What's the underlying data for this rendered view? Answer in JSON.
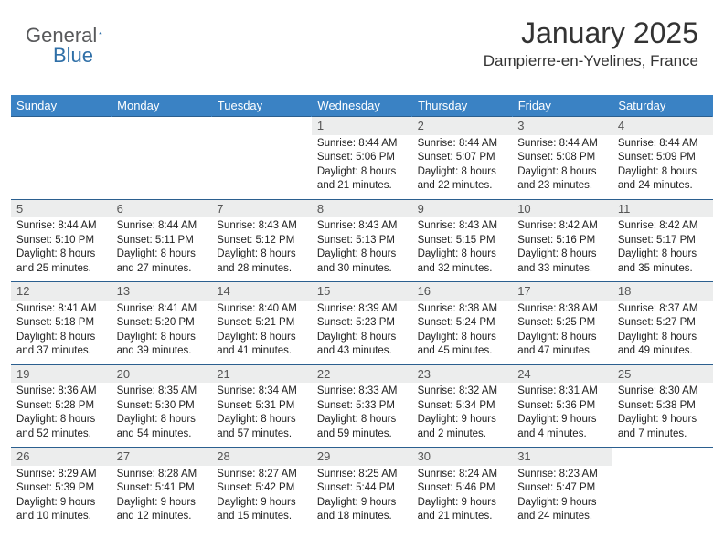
{
  "brand": {
    "general": "General",
    "blue": "Blue"
  },
  "header": {
    "month_title": "January 2025",
    "location": "Dampierre-en-Yvelines, France"
  },
  "colors": {
    "header_bg": "#3a82c4",
    "header_text": "#ffffff",
    "daynum_bg": "#eceded",
    "row_divider": "#2b5f8f",
    "body_text": "#222222",
    "logo_gray": "#58595b",
    "logo_blue": "#2f6fa7",
    "background": "#ffffff"
  },
  "typography": {
    "month_title_fontsize": 32,
    "location_fontsize": 17,
    "weekday_fontsize": 13,
    "daynum_fontsize": 13,
    "cell_fontsize": 11.5
  },
  "calendar": {
    "type": "table",
    "weekdays": [
      "Sunday",
      "Monday",
      "Tuesday",
      "Wednesday",
      "Thursday",
      "Friday",
      "Saturday"
    ],
    "weeks": [
      [
        null,
        null,
        null,
        {
          "day": "1",
          "sunrise": "Sunrise: 8:44 AM",
          "sunset": "Sunset: 5:06 PM",
          "dl1": "Daylight: 8 hours",
          "dl2": "and 21 minutes."
        },
        {
          "day": "2",
          "sunrise": "Sunrise: 8:44 AM",
          "sunset": "Sunset: 5:07 PM",
          "dl1": "Daylight: 8 hours",
          "dl2": "and 22 minutes."
        },
        {
          "day": "3",
          "sunrise": "Sunrise: 8:44 AM",
          "sunset": "Sunset: 5:08 PM",
          "dl1": "Daylight: 8 hours",
          "dl2": "and 23 minutes."
        },
        {
          "day": "4",
          "sunrise": "Sunrise: 8:44 AM",
          "sunset": "Sunset: 5:09 PM",
          "dl1": "Daylight: 8 hours",
          "dl2": "and 24 minutes."
        }
      ],
      [
        {
          "day": "5",
          "sunrise": "Sunrise: 8:44 AM",
          "sunset": "Sunset: 5:10 PM",
          "dl1": "Daylight: 8 hours",
          "dl2": "and 25 minutes."
        },
        {
          "day": "6",
          "sunrise": "Sunrise: 8:44 AM",
          "sunset": "Sunset: 5:11 PM",
          "dl1": "Daylight: 8 hours",
          "dl2": "and 27 minutes."
        },
        {
          "day": "7",
          "sunrise": "Sunrise: 8:43 AM",
          "sunset": "Sunset: 5:12 PM",
          "dl1": "Daylight: 8 hours",
          "dl2": "and 28 minutes."
        },
        {
          "day": "8",
          "sunrise": "Sunrise: 8:43 AM",
          "sunset": "Sunset: 5:13 PM",
          "dl1": "Daylight: 8 hours",
          "dl2": "and 30 minutes."
        },
        {
          "day": "9",
          "sunrise": "Sunrise: 8:43 AM",
          "sunset": "Sunset: 5:15 PM",
          "dl1": "Daylight: 8 hours",
          "dl2": "and 32 minutes."
        },
        {
          "day": "10",
          "sunrise": "Sunrise: 8:42 AM",
          "sunset": "Sunset: 5:16 PM",
          "dl1": "Daylight: 8 hours",
          "dl2": "and 33 minutes."
        },
        {
          "day": "11",
          "sunrise": "Sunrise: 8:42 AM",
          "sunset": "Sunset: 5:17 PM",
          "dl1": "Daylight: 8 hours",
          "dl2": "and 35 minutes."
        }
      ],
      [
        {
          "day": "12",
          "sunrise": "Sunrise: 8:41 AM",
          "sunset": "Sunset: 5:18 PM",
          "dl1": "Daylight: 8 hours",
          "dl2": "and 37 minutes."
        },
        {
          "day": "13",
          "sunrise": "Sunrise: 8:41 AM",
          "sunset": "Sunset: 5:20 PM",
          "dl1": "Daylight: 8 hours",
          "dl2": "and 39 minutes."
        },
        {
          "day": "14",
          "sunrise": "Sunrise: 8:40 AM",
          "sunset": "Sunset: 5:21 PM",
          "dl1": "Daylight: 8 hours",
          "dl2": "and 41 minutes."
        },
        {
          "day": "15",
          "sunrise": "Sunrise: 8:39 AM",
          "sunset": "Sunset: 5:23 PM",
          "dl1": "Daylight: 8 hours",
          "dl2": "and 43 minutes."
        },
        {
          "day": "16",
          "sunrise": "Sunrise: 8:38 AM",
          "sunset": "Sunset: 5:24 PM",
          "dl1": "Daylight: 8 hours",
          "dl2": "and 45 minutes."
        },
        {
          "day": "17",
          "sunrise": "Sunrise: 8:38 AM",
          "sunset": "Sunset: 5:25 PM",
          "dl1": "Daylight: 8 hours",
          "dl2": "and 47 minutes."
        },
        {
          "day": "18",
          "sunrise": "Sunrise: 8:37 AM",
          "sunset": "Sunset: 5:27 PM",
          "dl1": "Daylight: 8 hours",
          "dl2": "and 49 minutes."
        }
      ],
      [
        {
          "day": "19",
          "sunrise": "Sunrise: 8:36 AM",
          "sunset": "Sunset: 5:28 PM",
          "dl1": "Daylight: 8 hours",
          "dl2": "and 52 minutes."
        },
        {
          "day": "20",
          "sunrise": "Sunrise: 8:35 AM",
          "sunset": "Sunset: 5:30 PM",
          "dl1": "Daylight: 8 hours",
          "dl2": "and 54 minutes."
        },
        {
          "day": "21",
          "sunrise": "Sunrise: 8:34 AM",
          "sunset": "Sunset: 5:31 PM",
          "dl1": "Daylight: 8 hours",
          "dl2": "and 57 minutes."
        },
        {
          "day": "22",
          "sunrise": "Sunrise: 8:33 AM",
          "sunset": "Sunset: 5:33 PM",
          "dl1": "Daylight: 8 hours",
          "dl2": "and 59 minutes."
        },
        {
          "day": "23",
          "sunrise": "Sunrise: 8:32 AM",
          "sunset": "Sunset: 5:34 PM",
          "dl1": "Daylight: 9 hours",
          "dl2": "and 2 minutes."
        },
        {
          "day": "24",
          "sunrise": "Sunrise: 8:31 AM",
          "sunset": "Sunset: 5:36 PM",
          "dl1": "Daylight: 9 hours",
          "dl2": "and 4 minutes."
        },
        {
          "day": "25",
          "sunrise": "Sunrise: 8:30 AM",
          "sunset": "Sunset: 5:38 PM",
          "dl1": "Daylight: 9 hours",
          "dl2": "and 7 minutes."
        }
      ],
      [
        {
          "day": "26",
          "sunrise": "Sunrise: 8:29 AM",
          "sunset": "Sunset: 5:39 PM",
          "dl1": "Daylight: 9 hours",
          "dl2": "and 10 minutes."
        },
        {
          "day": "27",
          "sunrise": "Sunrise: 8:28 AM",
          "sunset": "Sunset: 5:41 PM",
          "dl1": "Daylight: 9 hours",
          "dl2": "and 12 minutes."
        },
        {
          "day": "28",
          "sunrise": "Sunrise: 8:27 AM",
          "sunset": "Sunset: 5:42 PM",
          "dl1": "Daylight: 9 hours",
          "dl2": "and 15 minutes."
        },
        {
          "day": "29",
          "sunrise": "Sunrise: 8:25 AM",
          "sunset": "Sunset: 5:44 PM",
          "dl1": "Daylight: 9 hours",
          "dl2": "and 18 minutes."
        },
        {
          "day": "30",
          "sunrise": "Sunrise: 8:24 AM",
          "sunset": "Sunset: 5:46 PM",
          "dl1": "Daylight: 9 hours",
          "dl2": "and 21 minutes."
        },
        {
          "day": "31",
          "sunrise": "Sunrise: 8:23 AM",
          "sunset": "Sunset: 5:47 PM",
          "dl1": "Daylight: 9 hours",
          "dl2": "and 24 minutes."
        },
        null
      ]
    ]
  }
}
